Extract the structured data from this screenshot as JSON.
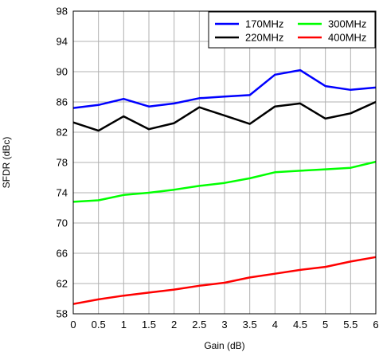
{
  "chart_data": {
    "type": "line",
    "xlabel": "Gain (dB)",
    "ylabel": "SFDR (dBc)",
    "xlim": [
      0,
      6
    ],
    "ylim": [
      58,
      98
    ],
    "xticks": [
      "0",
      "0.5",
      "1",
      "1.5",
      "2",
      "2.5",
      "3",
      "3.5",
      "4",
      "4.5",
      "5",
      "5.5",
      "6"
    ],
    "yticks": [
      "58",
      "62",
      "66",
      "70",
      "74",
      "78",
      "82",
      "86",
      "90",
      "94",
      "98"
    ],
    "grid": true,
    "legend_position": "top-right",
    "x": [
      0,
      0.5,
      1,
      1.5,
      2,
      2.5,
      3,
      3.5,
      4,
      4.5,
      5,
      5.5,
      6
    ],
    "series": [
      {
        "name": "170MHz",
        "color": "#0000ff",
        "values": [
          85.2,
          85.6,
          86.4,
          85.4,
          85.8,
          86.5,
          86.7,
          86.9,
          89.6,
          90.2,
          88.1,
          87.6,
          87.9
        ]
      },
      {
        "name": "220MHz",
        "color": "#000000",
        "values": [
          83.3,
          82.2,
          84.1,
          82.4,
          83.2,
          85.3,
          84.2,
          83.1,
          85.4,
          85.8,
          83.8,
          84.5,
          86.0
        ]
      },
      {
        "name": "300MHz",
        "color": "#00ff00",
        "values": [
          72.8,
          73.0,
          73.7,
          74.0,
          74.4,
          74.9,
          75.3,
          75.9,
          76.7,
          76.9,
          77.1,
          77.3,
          78.1
        ]
      },
      {
        "name": "400MHz",
        "color": "#ff0000",
        "values": [
          59.3,
          59.9,
          60.4,
          60.8,
          61.2,
          61.7,
          62.1,
          62.8,
          63.3,
          63.8,
          64.2,
          64.9,
          65.5
        ]
      }
    ]
  }
}
